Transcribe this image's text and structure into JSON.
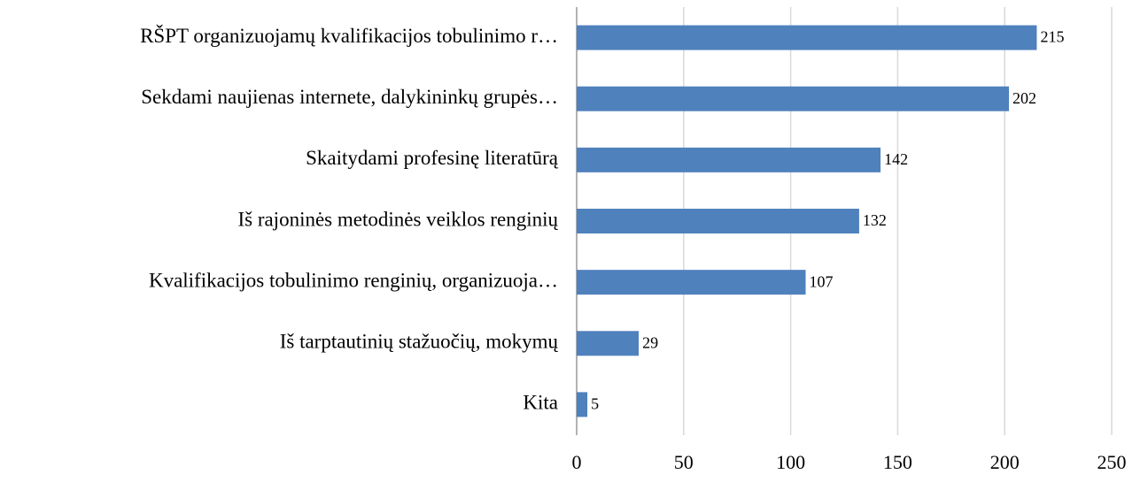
{
  "chart_data": {
    "type": "bar",
    "orientation": "horizontal",
    "categories": [
      "RŠPT organizuojamų kvalifikacijos tobulinimo r…",
      "Sekdami naujienas internete, dalykininkų grupės…",
      "Skaitydami profesinę literatūrą",
      "Iš rajoninės metodinės veiklos renginių",
      "Kvalifikacijos tobulinimo renginių, organizuoja…",
      "Iš tarptautinių stažuočių, mokymų",
      "Kita"
    ],
    "values": [
      215,
      202,
      142,
      132,
      107,
      29,
      5
    ],
    "color": "#4f81bd",
    "xlim": [
      0,
      250
    ],
    "xticks": [
      0,
      50,
      100,
      150,
      200,
      250
    ],
    "grid": true
  }
}
